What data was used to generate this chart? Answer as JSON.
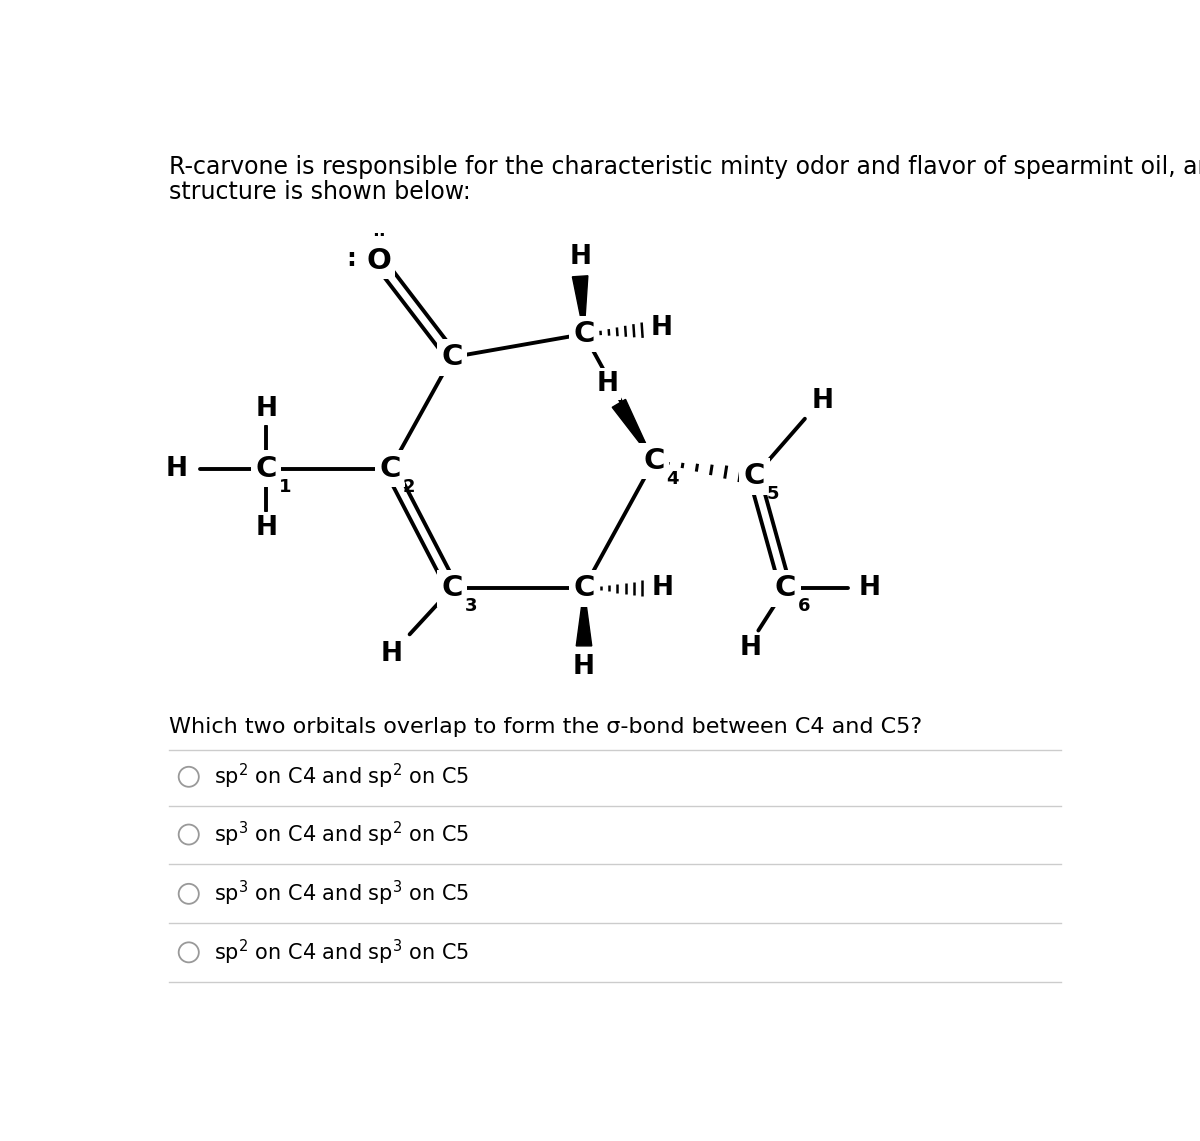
{
  "title_line1": "R-carvone is responsible for the characteristic minty odor and flavor of spearmint oil, and its",
  "title_line2": "structure is shown below:",
  "question_text": "Which two orbitals overlap to form the σ-bond between C4 and C5?",
  "choices": [
    "sp² on C4 and sp² on C5",
    "sp³ on C4 and sp² on C5",
    "sp³ on C4 and sp³ on C5",
    "sp² on C4 and sp³ on C5"
  ],
  "bg_color": "#ffffff",
  "text_color": "#000000",
  "title_fontsize": 17,
  "question_fontsize": 16,
  "choice_fontsize": 15,
  "line_color": "#000000",
  "line_width": 2.8,
  "divider_color": "#cccccc"
}
